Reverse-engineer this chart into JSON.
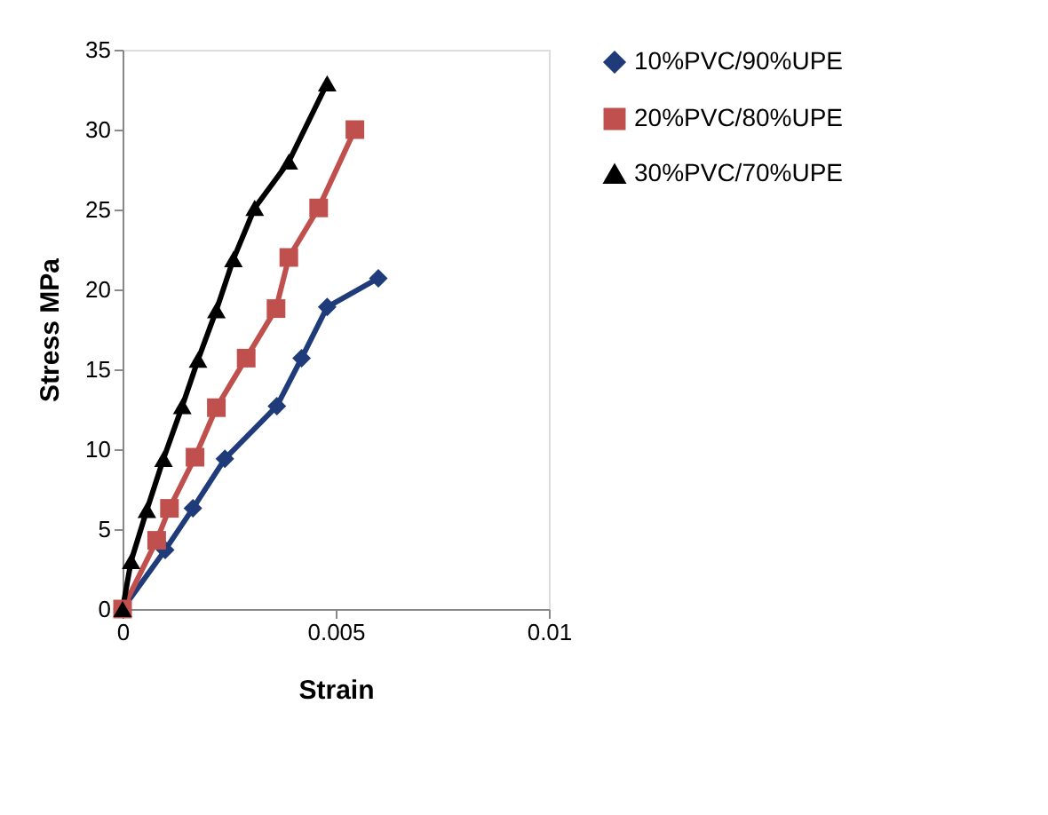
{
  "chart_data": {
    "type": "line",
    "xlabel": "Strain",
    "ylabel": "Stress MPa",
    "xlim": [
      0,
      0.01
    ],
    "xticks": [
      0,
      0.005,
      0.01
    ],
    "ylim": [
      0,
      35
    ],
    "yticks": [
      0,
      5,
      10,
      15,
      20,
      25,
      30,
      35
    ],
    "grid": false,
    "legend": "right",
    "line_style": "solid",
    "series": [
      {
        "name": "10%PVC/90%UPE",
        "color": "#1f3b7a",
        "marker": "diamond",
        "x": [
          0,
          0.001,
          0.00165,
          0.0024,
          0.00362,
          0.0042,
          0.0048,
          0.006
        ],
        "values": [
          0,
          3.7,
          6.3,
          9.4,
          12.7,
          15.7,
          18.9,
          20.7
        ]
      },
      {
        "name": "20%PVC/80%UPE",
        "color": "#c0504d",
        "marker": "square",
        "x": [
          0,
          0.0008,
          0.0011,
          0.0017,
          0.0022,
          0.0029,
          0.0036,
          0.0039,
          0.0046,
          0.00545
        ],
        "values": [
          0,
          4.3,
          6.3,
          9.5,
          12.6,
          15.7,
          18.8,
          22.0,
          25.1,
          30.0
        ]
      },
      {
        "name": "30%PVC/70%UPE",
        "color": "#000000",
        "marker": "triangle",
        "x": [
          0,
          0.0002,
          0.00057,
          0.00096,
          0.0014,
          0.00177,
          0.0022,
          0.0026,
          0.0031,
          0.0039,
          0.0048
        ],
        "values": [
          0,
          3.0,
          6.2,
          9.4,
          12.7,
          15.6,
          18.7,
          21.9,
          25.1,
          28.0,
          32.9
        ]
      }
    ]
  }
}
